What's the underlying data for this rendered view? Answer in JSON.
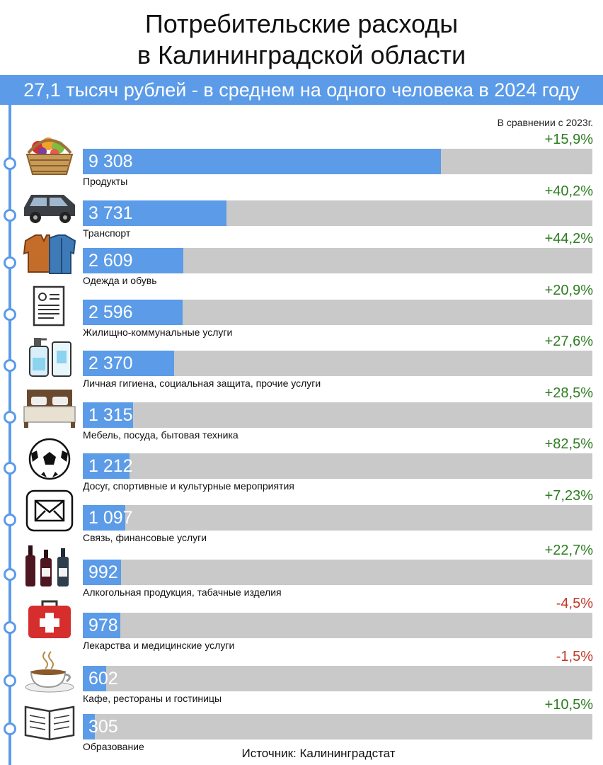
{
  "header": {
    "title_line1": "Потребительские расходы",
    "title_line2": "в Калининградской области",
    "subtitle": "27,1 тысяч рублей - в среднем на одного человека в 2024 году",
    "comparison_note": "В сравнении с 2023г."
  },
  "source": "Источник: Калининградстат",
  "colors": {
    "accent": "#5b9be8",
    "track": "#c9c9c9",
    "positive": "#2e7d22",
    "negative": "#c0392b"
  },
  "chart_data": {
    "type": "bar",
    "orientation": "horizontal",
    "title": "Потребительские расходы в Калининградской области",
    "subtitle": "27,1 тысяч рублей - в среднем на одного человека в 2024 году",
    "categories": [
      "Продукты",
      "Транспорт",
      "Одежда и обувь",
      "Жилищно-коммунальные услуги",
      "Личная гигиена, социальная защита, прочие услуги",
      "Мебель, посуда, бытовая техника",
      "Досуг, спортивные и культурные мероприятия",
      "Связь, финансовые услуги",
      "Алкогольная продукция, табачные изделия",
      "Лекарства и медицинские услуги",
      "Кафе, рестораны и гостиницы",
      "Образование"
    ],
    "values": [
      9308,
      3731,
      2609,
      2596,
      2370,
      1315,
      1212,
      1097,
      992,
      978,
      602,
      305
    ],
    "value_labels": [
      "9 308",
      "3 731",
      "2 609",
      "2 596",
      "2 370",
      "1 315",
      "1 212",
      "1 097",
      "992",
      "978",
      "602",
      "305"
    ],
    "changes": [
      "+15,9%",
      "+40,2%",
      "+44,2%",
      "+20,9%",
      "+27,6%",
      "+28,5%",
      "+82,5%",
      "+7,23%",
      "+22,7%",
      "-4,5%",
      "-1,5%",
      "+10,5%"
    ],
    "icons": [
      "basket-icon",
      "car-icon",
      "clothes-icon",
      "document-icon",
      "hygiene-icon",
      "bed-icon",
      "ball-icon",
      "envelope-icon",
      "bottles-icon",
      "first-aid-icon",
      "coffee-cup-icon",
      "book-icon"
    ]
  }
}
